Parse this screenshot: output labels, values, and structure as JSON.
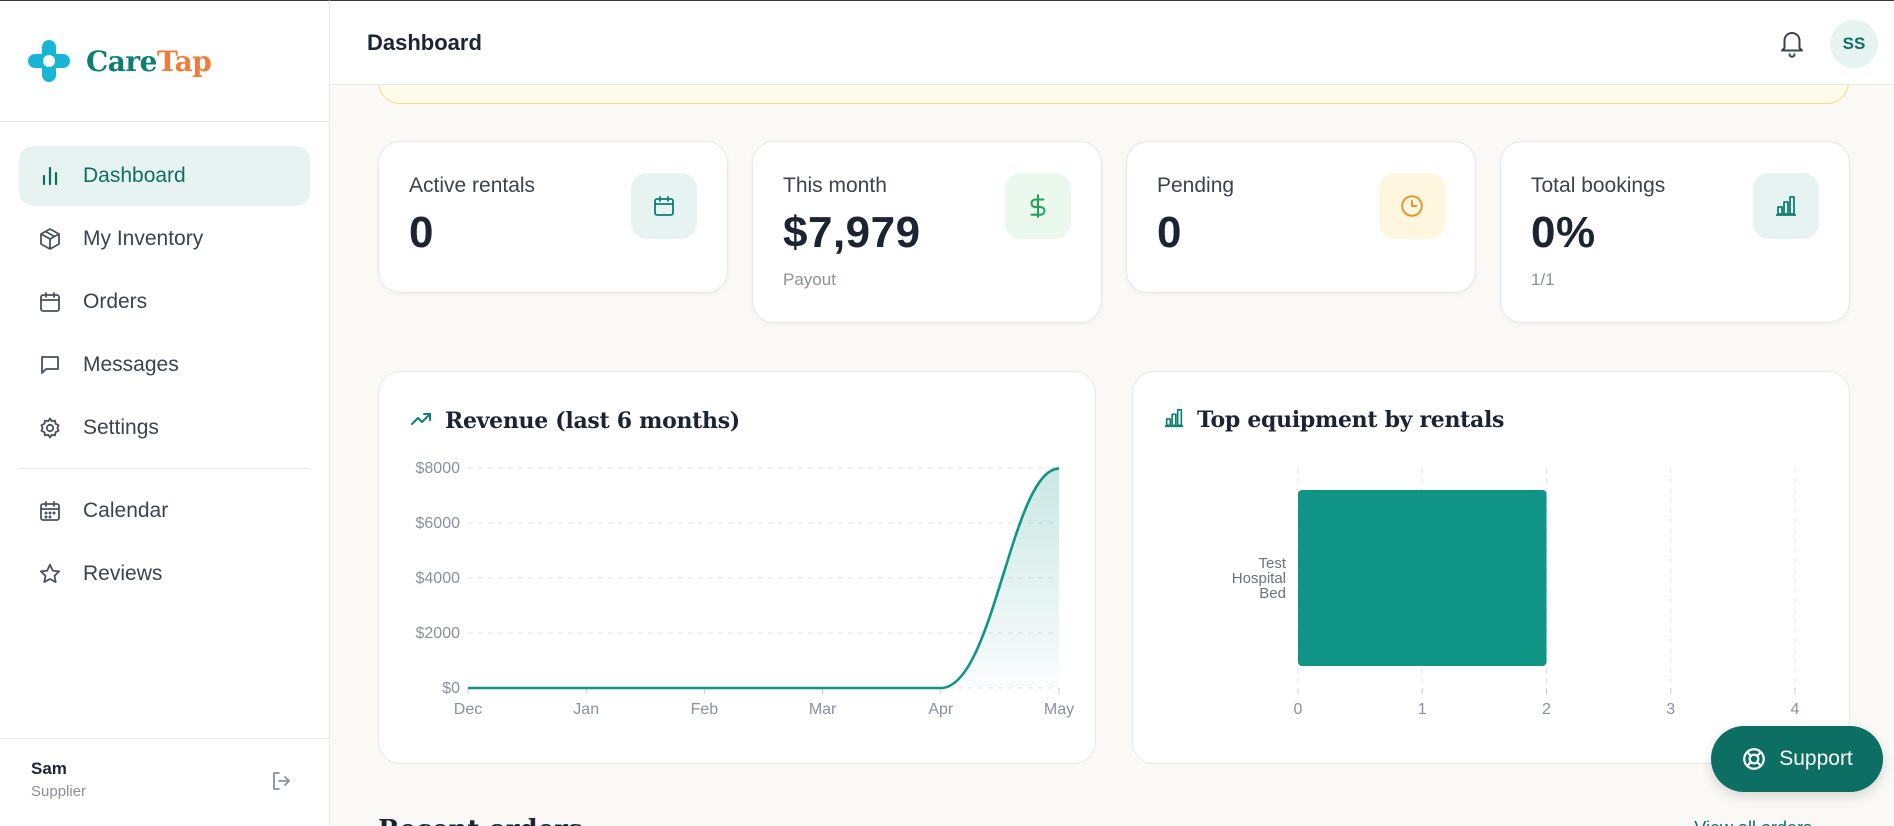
{
  "brand": {
    "part1": "Care",
    "part2": "Tap"
  },
  "sidebar": {
    "items": [
      {
        "label": "Dashboard",
        "icon": "bar-chart-icon",
        "active": true
      },
      {
        "label": "My Inventory",
        "icon": "box-icon"
      },
      {
        "label": "Orders",
        "icon": "calendar-icon"
      },
      {
        "label": "Messages",
        "icon": "message-icon"
      },
      {
        "label": "Settings",
        "icon": "gear-icon"
      }
    ],
    "secondary": [
      {
        "label": "Calendar",
        "icon": "calendar-grid-icon"
      },
      {
        "label": "Reviews",
        "icon": "star-icon"
      }
    ],
    "user": {
      "name": "Sam",
      "role": "Supplier"
    }
  },
  "header": {
    "title": "Dashboard",
    "avatar_initials": "SS"
  },
  "stats": [
    {
      "label": "Active rentals",
      "value": "0",
      "sub": "",
      "icon": "calendar-icon",
      "badge_bg": "#e6f3f1",
      "icon_color": "#0f7e72"
    },
    {
      "label": "This month",
      "value": "$7,979",
      "sub": "Payout",
      "icon": "dollar-icon",
      "badge_bg": "#eaf8ee",
      "icon_color": "#22a356"
    },
    {
      "label": "Pending",
      "value": "0",
      "sub": "",
      "icon": "clock-icon",
      "badge_bg": "#fff6e0",
      "icon_color": "#e5952a"
    },
    {
      "label": "Total bookings",
      "value": "0%",
      "sub": "1/1",
      "icon": "bar-chart-icon",
      "badge_bg": "#e6f3f1",
      "icon_color": "#0f7e72"
    }
  ],
  "revenue_card": {
    "title": "Revenue (last 6 months)"
  },
  "equipment_card": {
    "title": "Top equipment by rentals"
  },
  "chart_data": [
    {
      "type": "area",
      "title": "Revenue (last 6 months)",
      "categories": [
        "Dec",
        "Jan",
        "Feb",
        "Mar",
        "Apr",
        "May"
      ],
      "values": [
        0,
        0,
        0,
        0,
        0,
        7979
      ],
      "y_ticks": [
        "$0",
        "$2000",
        "$4000",
        "$6000",
        "$8000"
      ],
      "ylim": [
        0,
        8000
      ],
      "grid": true,
      "color": "#0f9485"
    },
    {
      "type": "bar",
      "orientation": "horizontal",
      "title": "Top equipment by rentals",
      "categories": [
        "Test Hospital Bed"
      ],
      "values": [
        2
      ],
      "x_ticks": [
        "0",
        "1",
        "2",
        "3",
        "4"
      ],
      "xlim": [
        0,
        4
      ],
      "grid": true,
      "color": "#0f9485"
    }
  ],
  "bottom": {
    "heading": "Recent orders",
    "view_all": "View all orders"
  },
  "support": {
    "label": "Support"
  }
}
